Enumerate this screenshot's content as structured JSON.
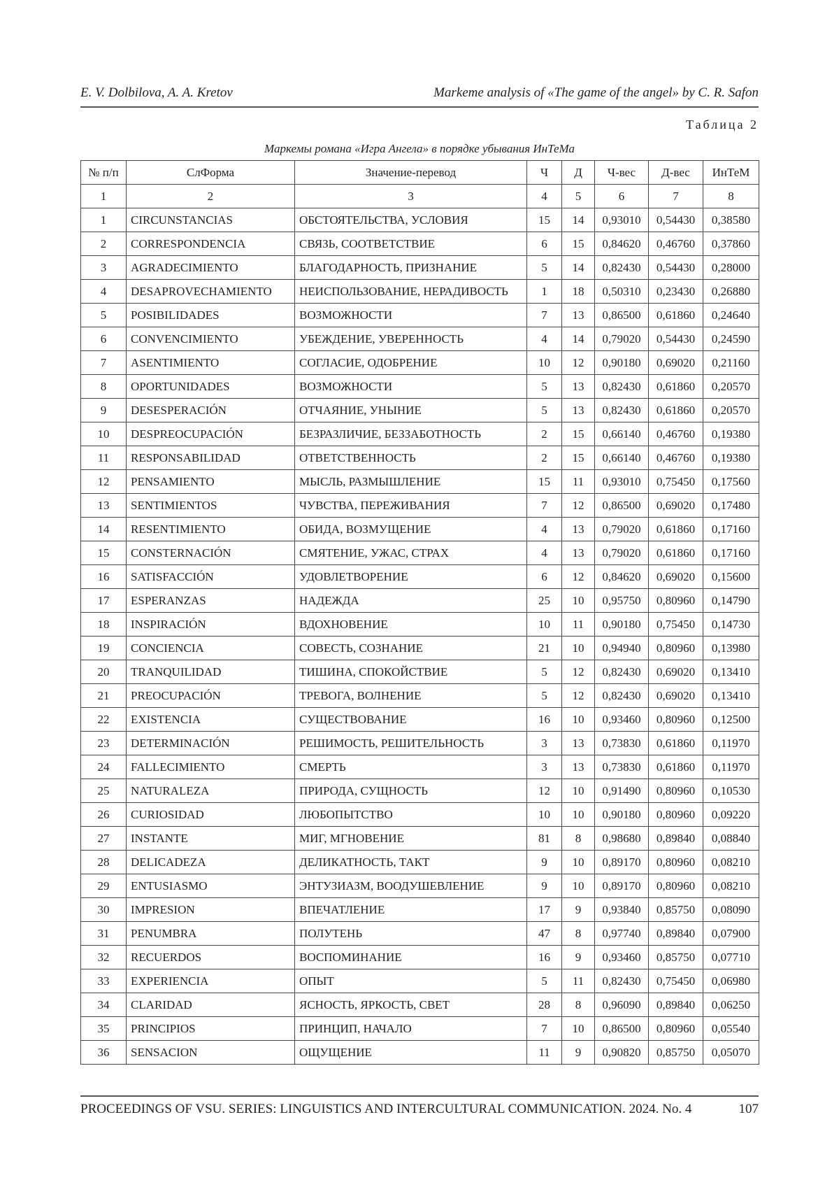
{
  "running_head": {
    "authors": "E. V. Dolbilova, A. A. Kretov",
    "title": "Markeme analysis of «The game of the angel» by C. R. Safon"
  },
  "table_label": "Таблица 2",
  "caption": "Маркемы романа «Игра Ангела» в порядке убывания ИнТеМа",
  "columns": [
    "№ п/п",
    "СлФорма",
    "Значение-перевод",
    "Ч",
    "Д",
    "Ч-вес",
    "Д-вес",
    "ИнТеМ"
  ],
  "column_numbers": [
    "1",
    "2",
    "3",
    "4",
    "5",
    "6",
    "7",
    "8"
  ],
  "rows": [
    [
      "1",
      "CIRCUNSTANCIAS",
      "ОБСТОЯТЕЛЬСТВА, УСЛОВИЯ",
      "15",
      "14",
      "0,93010",
      "0,54430",
      "0,38580"
    ],
    [
      "2",
      "CORRESPONDENCIA",
      "СВЯЗЬ, СООТВЕТСТВИЕ",
      "6",
      "15",
      "0,84620",
      "0,46760",
      "0,37860"
    ],
    [
      "3",
      "AGRADECIMIENTO",
      "БЛАГОДАРНОСТЬ, ПРИЗНАНИЕ",
      "5",
      "14",
      "0,82430",
      "0,54430",
      "0,28000"
    ],
    [
      "4",
      "DESAPROVECHAMIENTO",
      "НЕИСПОЛЬЗОВАНИЕ, НЕРАДИВОСТЬ",
      "1",
      "18",
      "0,50310",
      "0,23430",
      "0,26880"
    ],
    [
      "5",
      "POSIBILIDADES",
      "ВОЗМОЖНОСТИ",
      "7",
      "13",
      "0,86500",
      "0,61860",
      "0,24640"
    ],
    [
      "6",
      "CONVENCIMIENTO",
      "УБЕЖДЕНИЕ, УВЕРЕННОСТЬ",
      "4",
      "14",
      "0,79020",
      "0,54430",
      "0,24590"
    ],
    [
      "7",
      "ASENTIMIENTO",
      "СОГЛАСИЕ, ОДОБРЕНИЕ",
      "10",
      "12",
      "0,90180",
      "0,69020",
      "0,21160"
    ],
    [
      "8",
      "OPORTUNIDADES",
      "ВОЗМОЖНОСТИ",
      "5",
      "13",
      "0,82430",
      "0,61860",
      "0,20570"
    ],
    [
      "9",
      "DESESPERACIÓN",
      "ОТЧАЯНИЕ, УНЫНИЕ",
      "5",
      "13",
      "0,82430",
      "0,61860",
      "0,20570"
    ],
    [
      "10",
      "DESPREOCUPACIÓN",
      "БЕЗРАЗЛИЧИЕ, БЕЗЗАБОТНОСТЬ",
      "2",
      "15",
      "0,66140",
      "0,46760",
      "0,19380"
    ],
    [
      "11",
      "RESPONSABILIDAD",
      "ОТВЕТСТВЕННОСТЬ",
      "2",
      "15",
      "0,66140",
      "0,46760",
      "0,19380"
    ],
    [
      "12",
      "PENSAMIENTO",
      "МЫСЛЬ, РАЗМЫШЛЕНИЕ",
      "15",
      "11",
      "0,93010",
      "0,75450",
      "0,17560"
    ],
    [
      "13",
      "SENTIMIENTOS",
      "ЧУВСТВА, ПЕРЕЖИВАНИЯ",
      "7",
      "12",
      "0,86500",
      "0,69020",
      "0,17480"
    ],
    [
      "14",
      "RESENTIMIENTO",
      "ОБИДА, ВОЗМУЩЕНИЕ",
      "4",
      "13",
      "0,79020",
      "0,61860",
      "0,17160"
    ],
    [
      "15",
      "CONSTERNACIÓN",
      "СМЯТЕНИЕ, УЖАС, СТРАХ",
      "4",
      "13",
      "0,79020",
      "0,61860",
      "0,17160"
    ],
    [
      "16",
      "SATISFACCIÓN",
      "УДОВЛЕТВОРЕНИЕ",
      "6",
      "12",
      "0,84620",
      "0,69020",
      "0,15600"
    ],
    [
      "17",
      "ESPERANZAS",
      "НАДЕЖДА",
      "25",
      "10",
      "0,95750",
      "0,80960",
      "0,14790"
    ],
    [
      "18",
      "INSPIRACIÓN",
      "ВДОХНОВЕНИЕ",
      "10",
      "11",
      "0,90180",
      "0,75450",
      "0,14730"
    ],
    [
      "19",
      "CONCIENCIA",
      "СОВЕСТЬ, СОЗНАНИЕ",
      "21",
      "10",
      "0,94940",
      "0,80960",
      "0,13980"
    ],
    [
      "20",
      "TRANQUILIDAD",
      "ТИШИНА, СПОКОЙСТВИЕ",
      "5",
      "12",
      "0,82430",
      "0,69020",
      "0,13410"
    ],
    [
      "21",
      "PREOCUPACIÓN",
      "ТРЕВОГА, ВОЛНЕНИЕ",
      "5",
      "12",
      "0,82430",
      "0,69020",
      "0,13410"
    ],
    [
      "22",
      "EXISTENCIA",
      "СУЩЕСТВОВАНИЕ",
      "16",
      "10",
      "0,93460",
      "0,80960",
      "0,12500"
    ],
    [
      "23",
      "DETERMINACIÓN",
      "РЕШИМОСТЬ, РЕШИТЕЛЬНОСТЬ",
      "3",
      "13",
      "0,73830",
      "0,61860",
      "0,11970"
    ],
    [
      "24",
      "FALLECIMIENTO",
      "СМЕРТЬ",
      "3",
      "13",
      "0,73830",
      "0,61860",
      "0,11970"
    ],
    [
      "25",
      "NATURALEZA",
      "ПРИРОДА, СУЩНОСТЬ",
      "12",
      "10",
      "0,91490",
      "0,80960",
      "0,10530"
    ],
    [
      "26",
      "CURIOSIDAD",
      "ЛЮБОПЫТСТВО",
      "10",
      "10",
      "0,90180",
      "0,80960",
      "0,09220"
    ],
    [
      "27",
      "INSTANTE",
      "МИГ, МГНОВЕНИЕ",
      "81",
      "8",
      "0,98680",
      "0,89840",
      "0,08840"
    ],
    [
      "28",
      "DELICADEZA",
      "ДЕЛИКАТНОСТЬ, ТАКТ",
      "9",
      "10",
      "0,89170",
      "0,80960",
      "0,08210"
    ],
    [
      "29",
      "ENTUSIASMO",
      "ЭНТУЗИАЗМ, ВООДУШЕВЛЕНИЕ",
      "9",
      "10",
      "0,89170",
      "0,80960",
      "0,08210"
    ],
    [
      "30",
      "IMPRESION",
      "ВПЕЧАТЛЕНИЕ",
      "17",
      "9",
      "0,93840",
      "0,85750",
      "0,08090"
    ],
    [
      "31",
      "PENUMBRA",
      "ПОЛУТЕНЬ",
      "47",
      "8",
      "0,97740",
      "0,89840",
      "0,07900"
    ],
    [
      "32",
      "RECUERDOS",
      "ВОСПОМИНАНИЕ",
      "16",
      "9",
      "0,93460",
      "0,85750",
      "0,07710"
    ],
    [
      "33",
      "EXPERIENCIA",
      "ОПЫТ",
      "5",
      "11",
      "0,82430",
      "0,75450",
      "0,06980"
    ],
    [
      "34",
      "CLARIDAD",
      "ЯСНОСТЬ, ЯРКОСТЬ, СВЕТ",
      "28",
      "8",
      "0,96090",
      "0,89840",
      "0,06250"
    ],
    [
      "35",
      "PRINCIPIOS",
      "ПРИНЦИП, НАЧАЛО",
      "7",
      "10",
      "0,86500",
      "0,80960",
      "0,05540"
    ],
    [
      "36",
      "SENSACION",
      "ОЩУЩЕНИЕ",
      "11",
      "9",
      "0,90820",
      "0,85750",
      "0,05070"
    ]
  ],
  "footer": {
    "journal": "PROCEEDINGS OF VSU. SERIES: LINGUISTICS AND INTERCULTURAL COMMUNICATION. 2024. No. 4",
    "page": "107"
  }
}
